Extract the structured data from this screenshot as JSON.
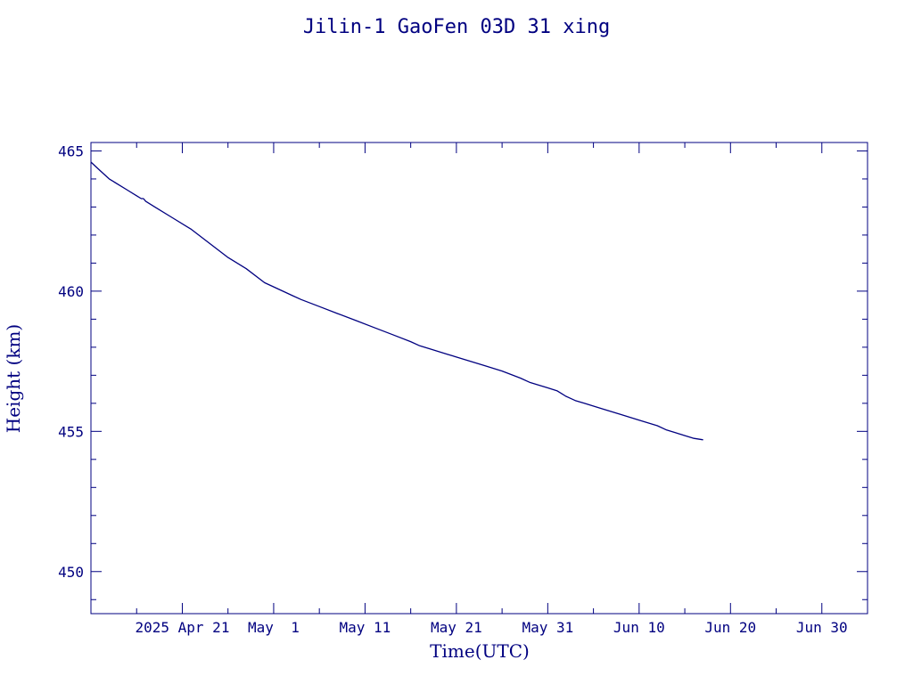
{
  "chart_data": {
    "type": "line",
    "title": "Jilin-1 GaoFen 03D 31 xing",
    "xlabel": "Time(UTC)",
    "ylabel": "Height (km)",
    "x_axis_type": "date",
    "xlim": [
      "2025-04-11",
      "2025-07-05"
    ],
    "ylim": [
      448.5,
      465.3
    ],
    "x_ticks": [
      {
        "date": "2025-04-21",
        "label": "2025 Apr 21"
      },
      {
        "date": "2025-05-01",
        "label": "May  1"
      },
      {
        "date": "2025-05-11",
        "label": "May 11"
      },
      {
        "date": "2025-05-21",
        "label": "May 21"
      },
      {
        "date": "2025-05-31",
        "label": "May 31"
      },
      {
        "date": "2025-06-10",
        "label": "Jun 10"
      },
      {
        "date": "2025-06-20",
        "label": "Jun 20"
      },
      {
        "date": "2025-06-30",
        "label": "Jun 30"
      }
    ],
    "y_ticks": [
      {
        "value": 450,
        "label": "450"
      },
      {
        "value": 455,
        "label": "455"
      },
      {
        "value": 460,
        "label": "460"
      },
      {
        "value": 465,
        "label": "465"
      }
    ],
    "grid": false,
    "color": "#000080",
    "series": [
      {
        "x": [
          "2025-04-11 00:00",
          "2025-04-12 00:00",
          "2025-04-13 00:00",
          "2025-04-14 00:00",
          "2025-04-15 00:00",
          "2025-04-16 00:00",
          "2025-04-16 12:00",
          "2025-04-16 18:00",
          "2025-04-17 00:00",
          "2025-04-18 00:00",
          "2025-04-20 00:00",
          "2025-04-22 00:00",
          "2025-04-24 00:00",
          "2025-04-26 00:00",
          "2025-04-28 00:00",
          "2025-04-30 00:00",
          "2025-05-02 00:00",
          "2025-05-03 00:00",
          "2025-05-04 00:00",
          "2025-05-06 00:00",
          "2025-05-08 00:00",
          "2025-05-10 00:00",
          "2025-05-12 00:00",
          "2025-05-14 00:00",
          "2025-05-16 00:00",
          "2025-05-17 00:00",
          "2025-05-18 00:00",
          "2025-05-20 00:00",
          "2025-05-22 00:00",
          "2025-05-24 00:00",
          "2025-05-26 00:00",
          "2025-05-28 00:00",
          "2025-05-29 00:00",
          "2025-05-30 00:00",
          "2025-05-31 00:00",
          "2025-06-01 00:00",
          "2025-06-01 12:00",
          "2025-06-02 00:00",
          "2025-06-03 00:00",
          "2025-06-04 00:00",
          "2025-06-06 00:00",
          "2025-06-08 00:00",
          "2025-06-10 00:00",
          "2025-06-12 00:00",
          "2025-06-13 00:00",
          "2025-06-14 00:00",
          "2025-06-15 00:00",
          "2025-06-16 00:00",
          "2025-06-17 00:00"
        ],
        "y": [
          464.6,
          464.3,
          464.0,
          463.8,
          463.6,
          463.4,
          463.3,
          463.3,
          463.2,
          463.0,
          462.6,
          462.2,
          461.7,
          461.2,
          460.8,
          460.3,
          460.0,
          459.85,
          459.7,
          459.45,
          459.2,
          458.95,
          458.7,
          458.45,
          458.2,
          458.05,
          457.95,
          457.75,
          457.55,
          457.35,
          457.15,
          456.9,
          456.75,
          456.65,
          456.55,
          456.45,
          456.35,
          456.25,
          456.1,
          456.0,
          455.8,
          455.6,
          455.4,
          455.2,
          455.05,
          454.95,
          454.85,
          454.75,
          454.7
        ]
      }
    ]
  }
}
